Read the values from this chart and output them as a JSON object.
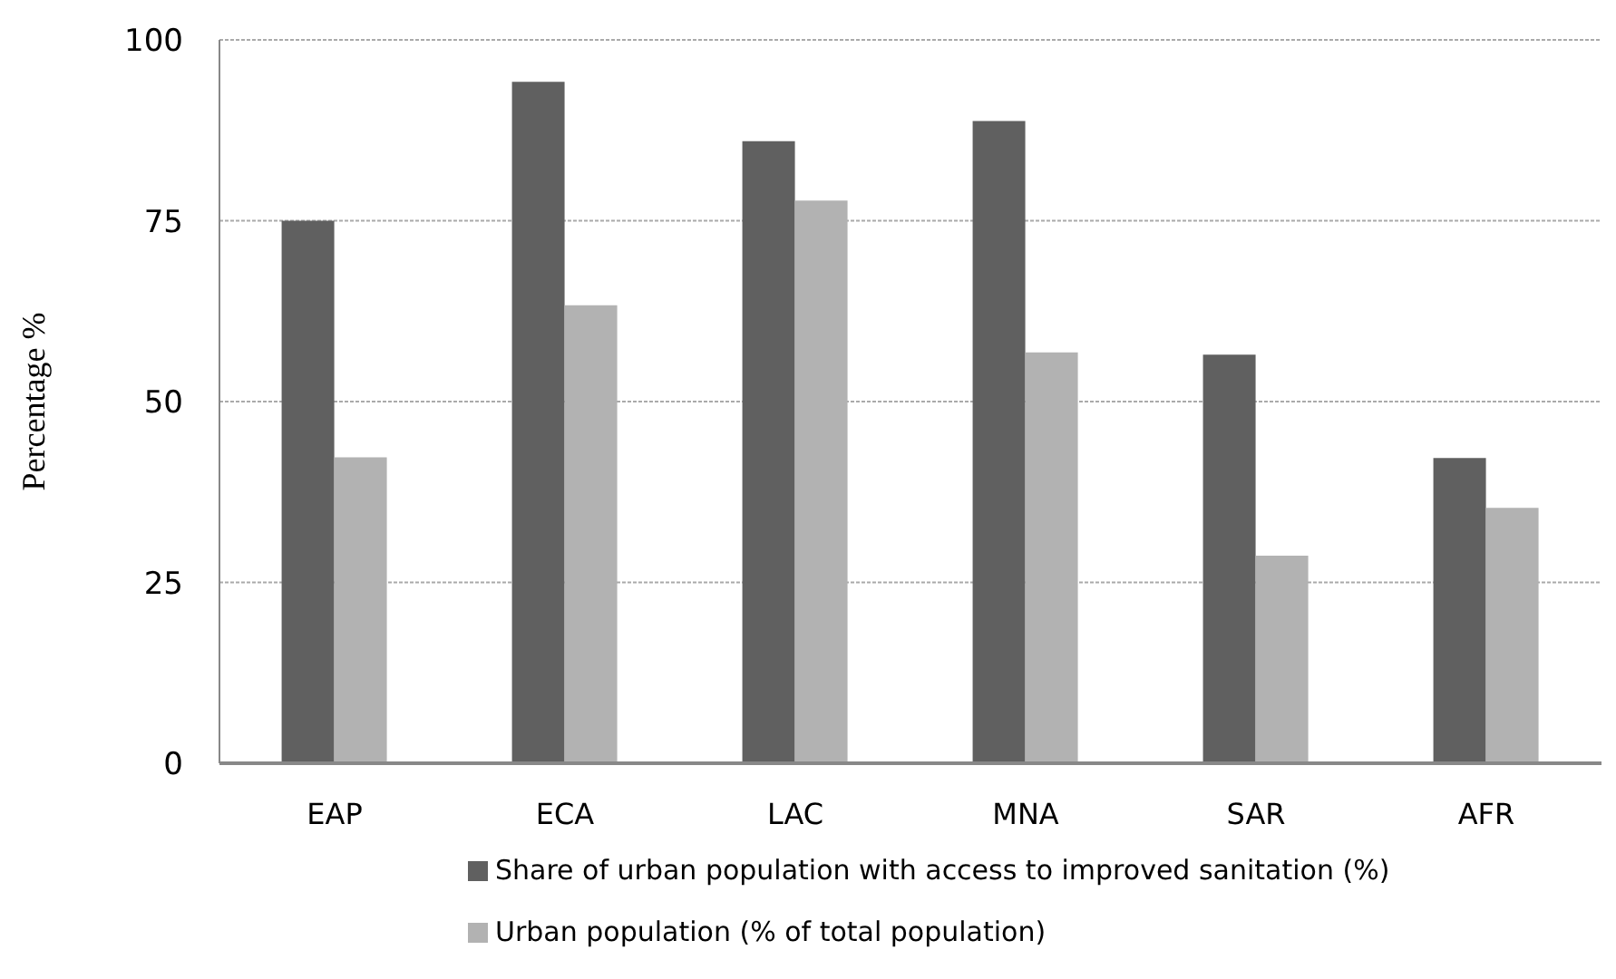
{
  "chart_data": {
    "type": "bar",
    "ylabel": "Percentage %",
    "categories": [
      "EAP",
      "ECA",
      "LAC",
      "MNA",
      "SAR",
      "AFR"
    ],
    "series": [
      {
        "name": "Share of urban population with access to improved sanitation (%)",
        "color": "#606060",
        "values": [
          75,
          94.2,
          86,
          88.8,
          56.5,
          42.2
        ]
      },
      {
        "name": "Urban population (% of total population)",
        "color": "#b2b2b2",
        "values": [
          42.3,
          63.3,
          77.8,
          56.8,
          28.7,
          35.3
        ]
      }
    ],
    "ylim": [
      0,
      100
    ],
    "yticks": [
      0,
      25,
      50,
      75,
      100
    ],
    "grid": "y",
    "legend": "bottom"
  }
}
